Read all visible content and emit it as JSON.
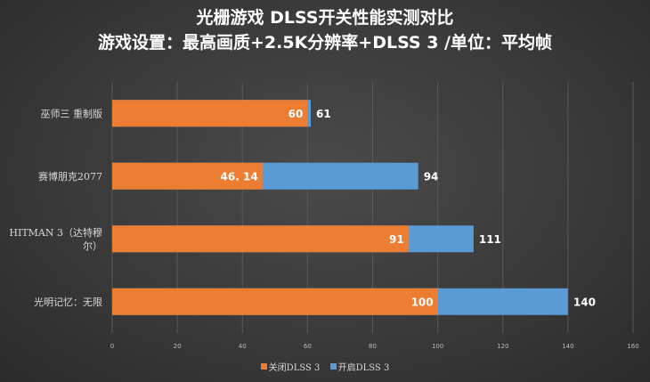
{
  "chart_data": {
    "type": "bar",
    "orientation": "horizontal",
    "title": "光栅游戏 DLSS开关性能实测对比",
    "subtitle": "游戏设置：最高画质+2.5K分辨率+DLSS 3 /单位：平均帧",
    "categories": [
      "巫师三 重制版",
      "赛博朋克2077",
      "HITMAN 3（达特穆尔）",
      "光明记忆：无限"
    ],
    "category_lines": [
      [
        "巫师三 重制版"
      ],
      [
        "赛博朋克2077"
      ],
      [
        "HITMAN 3（达特穆",
        "尔）"
      ],
      [
        "光明记忆：无限"
      ]
    ],
    "series": [
      {
        "name": "关闭DLSS 3",
        "values": [
          60,
          46.14,
          91,
          100
        ],
        "labels": [
          "60",
          "46. 14",
          "91",
          "100"
        ],
        "color": "#ed7d31"
      },
      {
        "name": "开启DLSS 3",
        "values": [
          61,
          94,
          111,
          140
        ],
        "labels": [
          "61",
          "94",
          "111",
          "140"
        ],
        "color": "#5b9bd5"
      }
    ],
    "xlim": [
      0,
      160
    ],
    "xticks": [
      0,
      20,
      40,
      60,
      80,
      100,
      120,
      140,
      160
    ],
    "grid": true,
    "legend_position": "bottom"
  }
}
